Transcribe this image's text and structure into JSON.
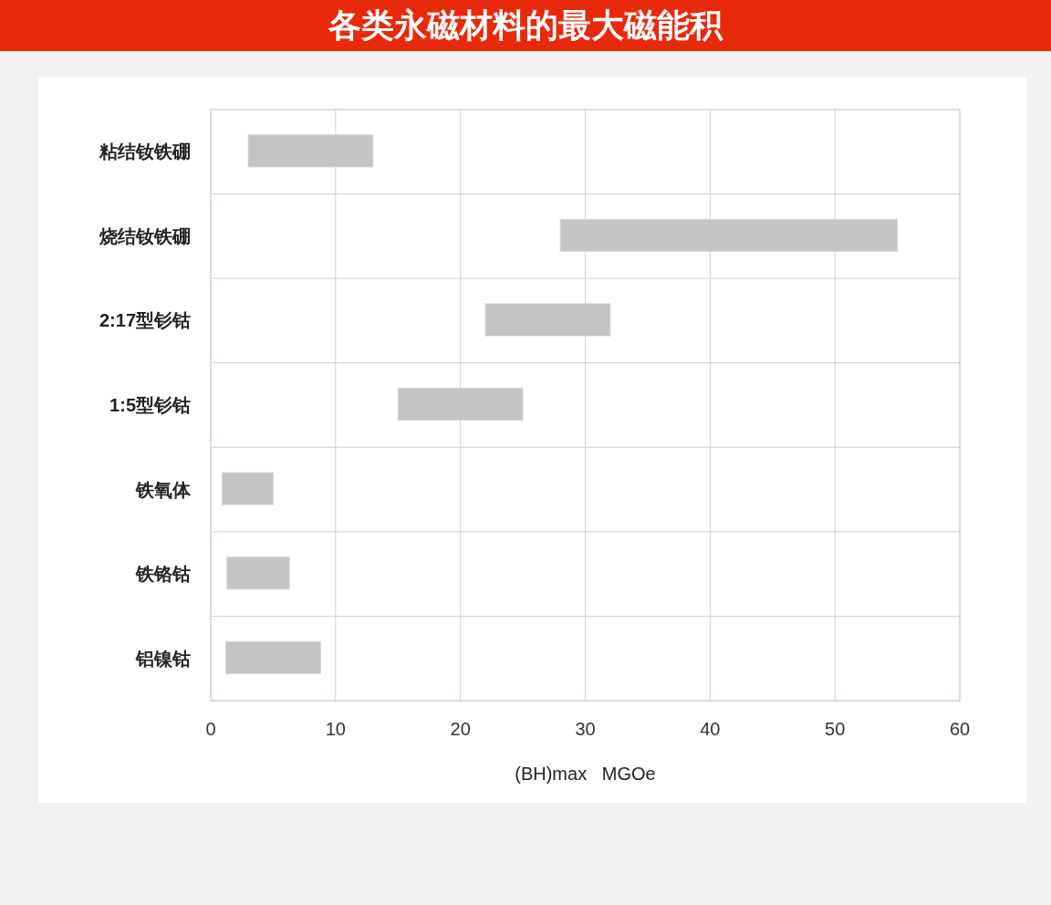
{
  "chart_data": {
    "type": "bar",
    "orientation": "horizontal",
    "title": "各类永磁材料的最大磁能积",
    "categories": [
      "粘结钕铁硼",
      "烧结钕铁硼",
      "2:17型钐钴",
      "1:5型钐钴",
      "铁氧体",
      "铁铬钴",
      "铝镍钴"
    ],
    "base": [
      3,
      28,
      22,
      15,
      0.9,
      1.3,
      1.2
    ],
    "values": [
      10,
      27,
      10,
      10,
      4.1,
      5,
      7.6
    ],
    "color": "#c4c4c4",
    "xlabel": "(BH)max   MGOe",
    "xlim": [
      0,
      60
    ],
    "xticks": [
      0,
      10,
      20,
      30,
      40,
      50,
      60
    ],
    "grid": true
  }
}
